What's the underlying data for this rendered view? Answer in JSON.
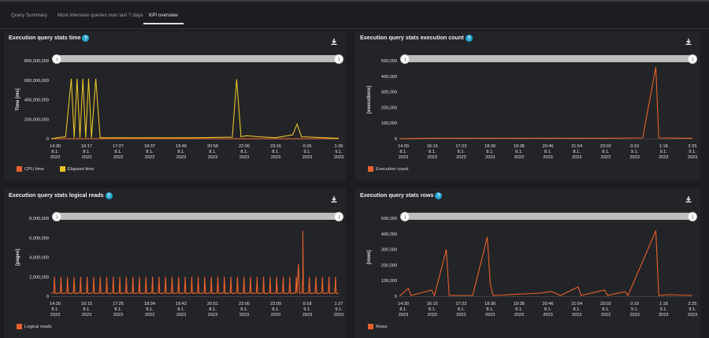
{
  "tabs": [
    {
      "label": "Query Summary"
    },
    {
      "label": "Most intensive queries over last 7 days"
    },
    {
      "label": "KPI overview"
    }
  ],
  "active_tab": "KPI overview",
  "colors": {
    "orange": "#e8612c",
    "yellow": "#e5c22b",
    "accent": "#27a6cf"
  },
  "panels": {
    "time": {
      "title": "Execution query stats time",
      "y_title": "Time [ms]",
      "legend": [
        "CPU time",
        "Elapsed time"
      ]
    },
    "execution": {
      "title": "Execution query stats execution count",
      "y_title": "[executions]",
      "legend": [
        "Execution count"
      ]
    },
    "logical": {
      "title": "Execution query stats logical reads",
      "y_title": "[pages]",
      "legend": [
        "Logical reads"
      ]
    },
    "rows": {
      "title": "Execution query stats rows",
      "y_title": "[rows]",
      "legend": [
        "Rows"
      ]
    }
  },
  "chart_data": [
    {
      "type": "line",
      "title": "Execution query stats time",
      "ylabel": "Time [ms]",
      "ylim": [
        0,
        800000000
      ],
      "yticks": [
        "0",
        "200,000,000",
        "400,000,000",
        "600,000,000",
        "800,000,000"
      ],
      "xticks": [
        [
          "14:30",
          "8.1.",
          "2023"
        ],
        [
          "16:17",
          "8.1.",
          "2023"
        ],
        [
          "17:27",
          "8.1.",
          "2023"
        ],
        [
          "18:37",
          "8.1.",
          "2023"
        ],
        [
          "19:46",
          "8.1.",
          "2023"
        ],
        [
          "20:56",
          "8.1.",
          "2023"
        ],
        [
          "22:06",
          "8.1.",
          "2023"
        ],
        [
          "23:16",
          "8.1.",
          "2023"
        ],
        [
          "0:26",
          "9.1.",
          "2023"
        ],
        [
          "1:36",
          "9.1.",
          "2023"
        ]
      ],
      "series": [
        {
          "name": "CPU time",
          "color": "#e8612c",
          "values": [
            0,
            0,
            0,
            0,
            0,
            0,
            0,
            0,
            0,
            0,
            0,
            0,
            0,
            0,
            0,
            0,
            0,
            0,
            0,
            0
          ]
        },
        {
          "name": "Elapsed time",
          "color": "#e5c22b",
          "points": [
            [
              0,
              0
            ],
            [
              0.02,
              10000000
            ],
            [
              0.05,
              20000000
            ],
            [
              0.07,
              615000000
            ],
            [
              0.08,
              10000000
            ],
            [
              0.09,
              615000000
            ],
            [
              0.1,
              10000000
            ],
            [
              0.11,
              615000000
            ],
            [
              0.12,
              10000000
            ],
            [
              0.13,
              615000000
            ],
            [
              0.14,
              10000000
            ],
            [
              0.155,
              615000000
            ],
            [
              0.17,
              10000000
            ],
            [
              0.3,
              10000000
            ],
            [
              0.5,
              10000000
            ],
            [
              0.63,
              15000000
            ],
            [
              0.645,
              610000000
            ],
            [
              0.66,
              20000000
            ],
            [
              0.68,
              30000000
            ],
            [
              0.72,
              20000000
            ],
            [
              0.78,
              10000000
            ],
            [
              0.84,
              40000000
            ],
            [
              0.855,
              150000000
            ],
            [
              0.87,
              20000000
            ],
            [
              0.95,
              10000000
            ],
            [
              1,
              5000000
            ]
          ]
        }
      ]
    },
    {
      "type": "line",
      "title": "Execution query stats execution count",
      "ylabel": "[executions]",
      "ylim": [
        0,
        500000
      ],
      "yticks": [
        "0",
        "100,000",
        "200,000",
        "300,000",
        "400,000",
        "500,000"
      ],
      "xticks": [
        [
          "14:30",
          "8.1.",
          "2023"
        ],
        [
          "16:15",
          "8.1.",
          "2023"
        ],
        [
          "17:23",
          "8.1.",
          "2023"
        ],
        [
          "18:30",
          "8.1.",
          "2023"
        ],
        [
          "19:38",
          "8.1.",
          "2023"
        ],
        [
          "20:46",
          "8.1.",
          "2023"
        ],
        [
          "21:54",
          "8.1.",
          "2023"
        ],
        [
          "23:02",
          "8.1.",
          "2023"
        ],
        [
          "0:10",
          "9.1.",
          "2023"
        ],
        [
          "1:18",
          "9.1.",
          "2023"
        ],
        [
          "2:25",
          "9.1.",
          "2023"
        ]
      ],
      "series": [
        {
          "name": "Execution count",
          "color": "#e8612c",
          "points": [
            [
              0,
              0
            ],
            [
              0.1,
              3000
            ],
            [
              0.3,
              3000
            ],
            [
              0.5,
              3000
            ],
            [
              0.7,
              3000
            ],
            [
              0.83,
              5000
            ],
            [
              0.875,
              460000
            ],
            [
              0.885,
              5000
            ],
            [
              0.92,
              4000
            ],
            [
              1,
              2000
            ]
          ]
        }
      ]
    },
    {
      "type": "line",
      "title": "Execution query stats logical reads",
      "ylabel": "[pages]",
      "ylim": [
        0,
        8000000
      ],
      "yticks": [
        "0",
        "2,000,000",
        "4,000,000",
        "6,000,000",
        "8,000,000"
      ],
      "xticks": [
        [
          "14:30",
          "8.1.",
          "2023"
        ],
        [
          "16:15",
          "8.1.",
          "2023"
        ],
        [
          "17:25",
          "8.1.",
          "2023"
        ],
        [
          "18:34",
          "8.1.",
          "2023"
        ],
        [
          "19:42",
          "8.1.",
          "2023"
        ],
        [
          "20:51",
          "8.1.",
          "2023"
        ],
        [
          "22:00",
          "8.1.",
          "2023"
        ],
        [
          "23:09",
          "8.1.",
          "2023"
        ],
        [
          "0:18",
          "9.1.",
          "2023"
        ],
        [
          "1:27",
          "9.1.",
          "2023"
        ]
      ],
      "series": [
        {
          "name": "Logical reads",
          "color": "#e8612c",
          "pattern": "periodic",
          "base": 300000,
          "peak": 2000000,
          "count": 44,
          "extra": [
            [
              0.86,
              3300000
            ],
            [
              0.875,
              6700000
            ]
          ]
        }
      ]
    },
    {
      "type": "line",
      "title": "Execution query stats rows",
      "ylabel": "[rows]",
      "ylim": [
        0,
        500000
      ],
      "yticks": [
        "0",
        "100,000",
        "200,000",
        "300,000",
        "400,000",
        "500,000"
      ],
      "xticks": [
        [
          "14:30",
          "8.1.",
          "2023"
        ],
        [
          "16:15",
          "8.1.",
          "2023"
        ],
        [
          "17:23",
          "8.1.",
          "2023"
        ],
        [
          "18:30",
          "8.1.",
          "2023"
        ],
        [
          "19:38",
          "8.1.",
          "2023"
        ],
        [
          "20:46",
          "8.1.",
          "2023"
        ],
        [
          "21:54",
          "8.1.",
          "2023"
        ],
        [
          "23:02",
          "8.1.",
          "2023"
        ],
        [
          "0:10",
          "9.1.",
          "2023"
        ],
        [
          "1:18",
          "9.1.",
          "2023"
        ],
        [
          "2:25",
          "9.1.",
          "2023"
        ]
      ],
      "series": [
        {
          "name": "Rows",
          "color": "#e8612c",
          "points": [
            [
              0,
              0
            ],
            [
              0.03,
              50000
            ],
            [
              0.04,
              5000
            ],
            [
              0.11,
              40000
            ],
            [
              0.12,
              5000
            ],
            [
              0.16,
              300000
            ],
            [
              0.17,
              5000
            ],
            [
              0.25,
              5000
            ],
            [
              0.3,
              380000
            ],
            [
              0.31,
              80000
            ],
            [
              0.32,
              5000
            ],
            [
              0.48,
              20000
            ],
            [
              0.52,
              30000
            ],
            [
              0.55,
              5000
            ],
            [
              0.61,
              60000
            ],
            [
              0.62,
              5000
            ],
            [
              0.7,
              40000
            ],
            [
              0.71,
              5000
            ],
            [
              0.77,
              30000
            ],
            [
              0.78,
              5000
            ],
            [
              0.875,
              420000
            ],
            [
              0.885,
              5000
            ],
            [
              0.92,
              10000
            ],
            [
              1,
              5000
            ]
          ]
        }
      ]
    }
  ]
}
